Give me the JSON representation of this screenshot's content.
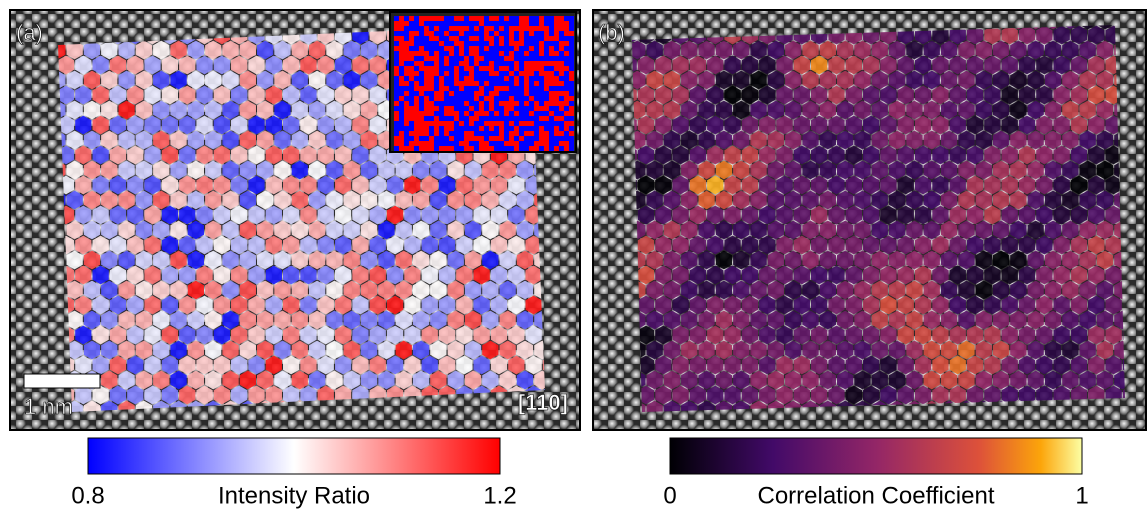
{
  "panels": [
    {
      "label": "(a)",
      "scale_bar": "1 nm",
      "direction": "[110]",
      "colorbar": {
        "min": "0.8",
        "title": "Intensity Ratio",
        "max": "1.2"
      }
    },
    {
      "label": "(b)",
      "colorbar": {
        "min": "0",
        "title": "Correlation Coefficient",
        "max": "1"
      }
    }
  ]
}
